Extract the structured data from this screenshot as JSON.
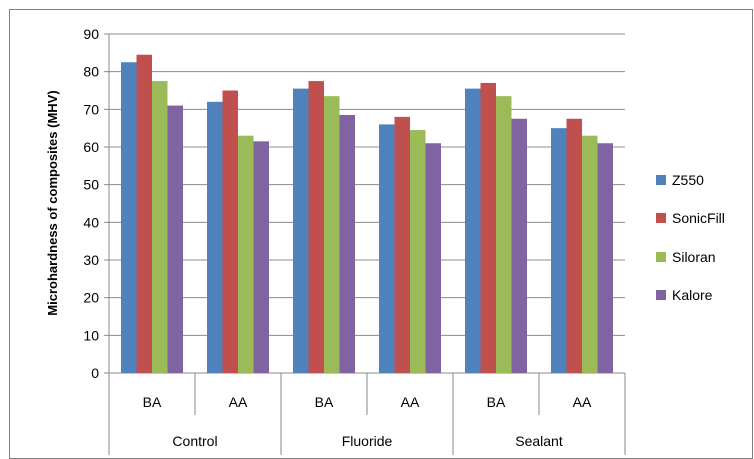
{
  "chart_data": {
    "type": "bar",
    "ylabel": "Microhardness  of composites (MHV)",
    "ylim": [
      0,
      90
    ],
    "yticks": [
      0,
      10,
      20,
      30,
      40,
      50,
      60,
      70,
      80,
      90
    ],
    "grid": true,
    "legend_position": "right",
    "groups": [
      {
        "label": "Control",
        "categories": [
          "BA",
          "AA"
        ]
      },
      {
        "label": "Fluoride",
        "categories": [
          "BA",
          "AA"
        ]
      },
      {
        "label": "Sealant",
        "categories": [
          "BA",
          "AA"
        ]
      }
    ],
    "series": [
      {
        "name": "Z550",
        "color": "#4f81bd",
        "values": [
          82.5,
          72,
          75.5,
          66,
          75.5,
          65
        ]
      },
      {
        "name": "SonicFill",
        "color": "#c0504d",
        "values": [
          84.5,
          75,
          77.5,
          68,
          77,
          67.5
        ]
      },
      {
        "name": "Siloran",
        "color": "#9bbb59",
        "values": [
          77.5,
          63,
          73.5,
          64.5,
          73.5,
          63
        ]
      },
      {
        "name": "Kalore",
        "color": "#8064a2",
        "values": [
          71,
          61.5,
          68.5,
          61,
          67.5,
          61
        ]
      }
    ]
  }
}
